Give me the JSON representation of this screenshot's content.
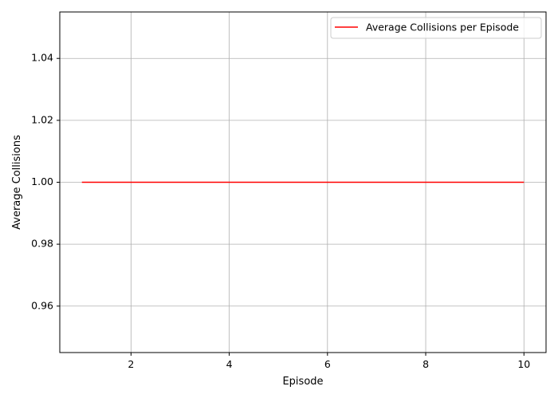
{
  "chart_data": {
    "type": "line",
    "title": "",
    "xlabel": "Episode",
    "ylabel": "Average Collisions",
    "xlim": [
      0.55,
      10.45
    ],
    "ylim": [
      0.945,
      1.055
    ],
    "xticks": [
      2,
      4,
      6,
      8,
      10
    ],
    "xtick_labels": [
      "2",
      "4",
      "6",
      "8",
      "10"
    ],
    "yticks": [
      0.96,
      0.98,
      1.0,
      1.02,
      1.04
    ],
    "ytick_labels": [
      "0.96",
      "0.98",
      "1.00",
      "1.02",
      "1.04"
    ],
    "grid": true,
    "legend_position": "top-right",
    "series": [
      {
        "name": "Average Collisions per Episode",
        "color": "#ff0000",
        "x": [
          1,
          2,
          3,
          4,
          5,
          6,
          7,
          8,
          9,
          10
        ],
        "y": [
          1,
          1,
          1,
          1,
          1,
          1,
          1,
          1,
          1,
          1
        ]
      }
    ]
  }
}
